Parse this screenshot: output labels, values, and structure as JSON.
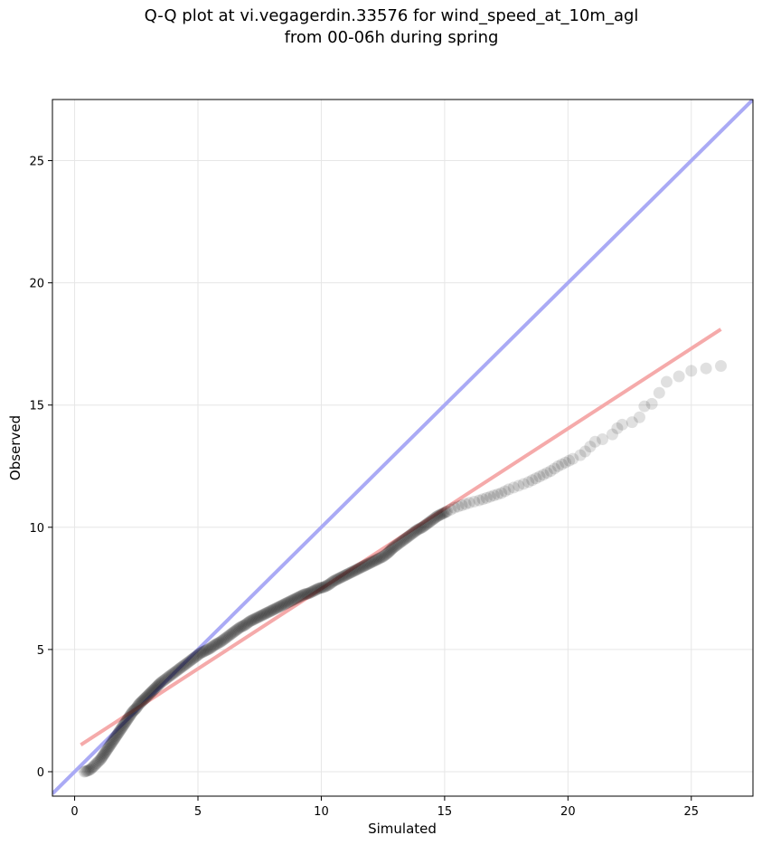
{
  "chart_data": {
    "type": "scatter",
    "title": [
      "Q-Q plot at vi.vegagerdin.33576 for wind_speed_at_10m_agl",
      "from 00-06h during spring"
    ],
    "xlabel": "Simulated",
    "ylabel": "Observed",
    "xlim": [
      -0.9,
      27.5
    ],
    "ylim": [
      -1.0,
      27.5
    ],
    "xticks": [
      0,
      5,
      10,
      15,
      20,
      25
    ],
    "yticks": [
      0,
      5,
      10,
      15,
      20,
      25
    ],
    "grid": true,
    "identity_line": {
      "color": "#aaaaf5",
      "from": [
        -0.9,
        -0.9
      ],
      "to": [
        27.5,
        27.5
      ]
    },
    "fit_line": {
      "color": "#f5aaaa",
      "from": [
        0.25,
        1.1
      ],
      "to": [
        26.2,
        18.1
      ]
    },
    "points_color": "#000000",
    "points": [
      [
        0.4,
        0.0
      ],
      [
        0.55,
        0.05
      ],
      [
        0.65,
        0.1
      ],
      [
        0.75,
        0.2
      ],
      [
        0.85,
        0.3
      ],
      [
        0.95,
        0.4
      ],
      [
        1.05,
        0.5
      ],
      [
        1.15,
        0.65
      ],
      [
        1.25,
        0.8
      ],
      [
        1.35,
        0.95
      ],
      [
        1.45,
        1.1
      ],
      [
        1.55,
        1.25
      ],
      [
        1.65,
        1.4
      ],
      [
        1.75,
        1.55
      ],
      [
        1.85,
        1.7
      ],
      [
        1.95,
        1.85
      ],
      [
        2.05,
        2.0
      ],
      [
        2.15,
        2.15
      ],
      [
        2.25,
        2.3
      ],
      [
        2.35,
        2.45
      ],
      [
        2.5,
        2.6
      ],
      [
        2.6,
        2.75
      ],
      [
        2.75,
        2.9
      ],
      [
        2.9,
        3.05
      ],
      [
        3.05,
        3.2
      ],
      [
        3.2,
        3.35
      ],
      [
        3.35,
        3.5
      ],
      [
        3.5,
        3.65
      ],
      [
        3.7,
        3.8
      ],
      [
        3.9,
        3.95
      ],
      [
        4.1,
        4.1
      ],
      [
        4.3,
        4.25
      ],
      [
        4.5,
        4.4
      ],
      [
        4.7,
        4.55
      ],
      [
        4.9,
        4.7
      ],
      [
        5.1,
        4.85
      ],
      [
        5.3,
        4.95
      ],
      [
        5.5,
        5.05
      ],
      [
        5.7,
        5.2
      ],
      [
        5.9,
        5.3
      ],
      [
        6.1,
        5.45
      ],
      [
        6.3,
        5.6
      ],
      [
        6.5,
        5.75
      ],
      [
        6.7,
        5.9
      ],
      [
        6.9,
        6.0
      ],
      [
        7.1,
        6.15
      ],
      [
        7.3,
        6.25
      ],
      [
        7.5,
        6.35
      ],
      [
        7.7,
        6.45
      ],
      [
        7.9,
        6.55
      ],
      [
        8.1,
        6.65
      ],
      [
        8.3,
        6.75
      ],
      [
        8.5,
        6.85
      ],
      [
        8.7,
        6.95
      ],
      [
        8.9,
        7.05
      ],
      [
        9.1,
        7.15
      ],
      [
        9.3,
        7.25
      ],
      [
        9.5,
        7.3
      ],
      [
        9.7,
        7.4
      ],
      [
        9.9,
        7.5
      ],
      [
        10.1,
        7.55
      ],
      [
        10.3,
        7.65
      ],
      [
        10.5,
        7.8
      ],
      [
        10.7,
        7.9
      ],
      [
        10.9,
        8.0
      ],
      [
        11.1,
        8.1
      ],
      [
        11.3,
        8.2
      ],
      [
        11.5,
        8.3
      ],
      [
        11.7,
        8.4
      ],
      [
        11.9,
        8.5
      ],
      [
        12.1,
        8.6
      ],
      [
        12.3,
        8.7
      ],
      [
        12.5,
        8.8
      ],
      [
        12.7,
        8.95
      ],
      [
        12.9,
        9.15
      ],
      [
        13.1,
        9.3
      ],
      [
        13.3,
        9.45
      ],
      [
        13.5,
        9.6
      ],
      [
        13.7,
        9.75
      ],
      [
        13.9,
        9.9
      ],
      [
        14.1,
        10.0
      ],
      [
        14.3,
        10.15
      ],
      [
        14.5,
        10.3
      ],
      [
        14.7,
        10.45
      ],
      [
        14.9,
        10.55
      ],
      [
        15.1,
        10.65
      ],
      [
        15.4,
        10.8
      ],
      [
        15.7,
        10.9
      ],
      [
        16.0,
        11.0
      ],
      [
        16.4,
        11.1
      ],
      [
        16.7,
        11.2
      ],
      [
        17.0,
        11.3
      ],
      [
        17.3,
        11.4
      ],
      [
        17.6,
        11.55
      ],
      [
        18.0,
        11.7
      ],
      [
        18.4,
        11.85
      ],
      [
        18.7,
        12.0
      ],
      [
        19.0,
        12.15
      ],
      [
        19.3,
        12.3
      ],
      [
        19.6,
        12.5
      ],
      [
        19.9,
        12.65
      ],
      [
        20.2,
        12.8
      ],
      [
        20.5,
        12.95
      ],
      [
        20.7,
        13.1
      ],
      [
        20.9,
        13.3
      ],
      [
        21.1,
        13.5
      ],
      [
        21.4,
        13.6
      ],
      [
        21.8,
        13.8
      ],
      [
        22.0,
        14.05
      ],
      [
        22.2,
        14.2
      ],
      [
        22.6,
        14.3
      ],
      [
        22.9,
        14.5
      ],
      [
        23.1,
        14.95
      ],
      [
        23.4,
        15.05
      ],
      [
        24.0,
        15.95
      ],
      [
        25.0,
        16.4
      ],
      [
        26.2,
        16.6
      ]
    ]
  }
}
